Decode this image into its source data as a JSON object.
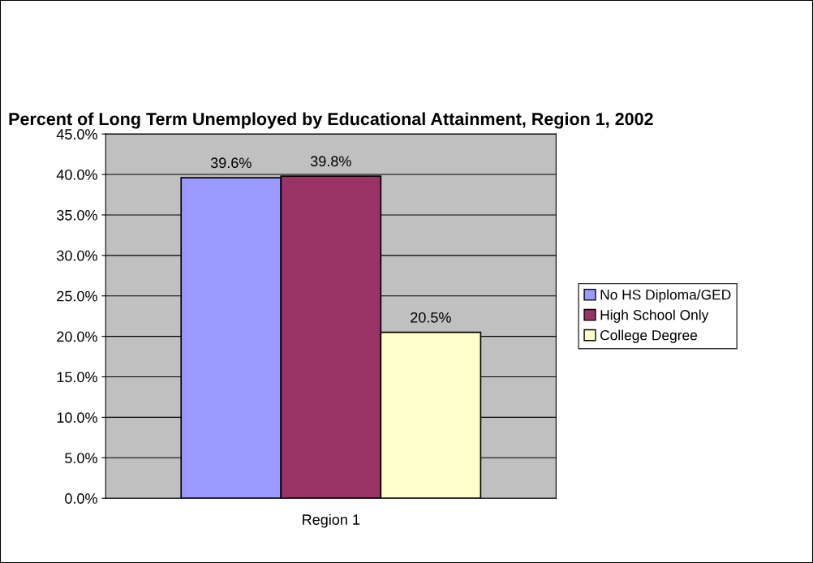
{
  "chart_data": {
    "type": "bar",
    "title": "Percent of Long Term Unemployed by Educational Attainment, Region 1, 2002",
    "categories": [
      "Region 1"
    ],
    "series": [
      {
        "name": "No HS Diploma/GED",
        "color": "#9999ff",
        "values": [
          39.6
        ],
        "value_labels": [
          "39.6%"
        ]
      },
      {
        "name": "High School Only",
        "color": "#993366",
        "values": [
          39.8
        ],
        "value_labels": [
          "39.8%"
        ]
      },
      {
        "name": "College Degree",
        "color": "#ffffcc",
        "values": [
          20.5
        ],
        "value_labels": [
          "20.5%"
        ]
      }
    ],
    "ylim": [
      0,
      45
    ],
    "yticks": [
      {
        "value": 0,
        "label": "0.0%"
      },
      {
        "value": 5,
        "label": "5.0%"
      },
      {
        "value": 10,
        "label": "10.0%"
      },
      {
        "value": 15,
        "label": "15.0%"
      },
      {
        "value": 20,
        "label": "20.0%"
      },
      {
        "value": 25,
        "label": "25.0%"
      },
      {
        "value": 30,
        "label": "30.0%"
      },
      {
        "value": 35,
        "label": "35.0%"
      },
      {
        "value": 40,
        "label": "40.0%"
      },
      {
        "value": 45,
        "label": "45.0%"
      }
    ],
    "grid": "y",
    "legend": "right"
  }
}
